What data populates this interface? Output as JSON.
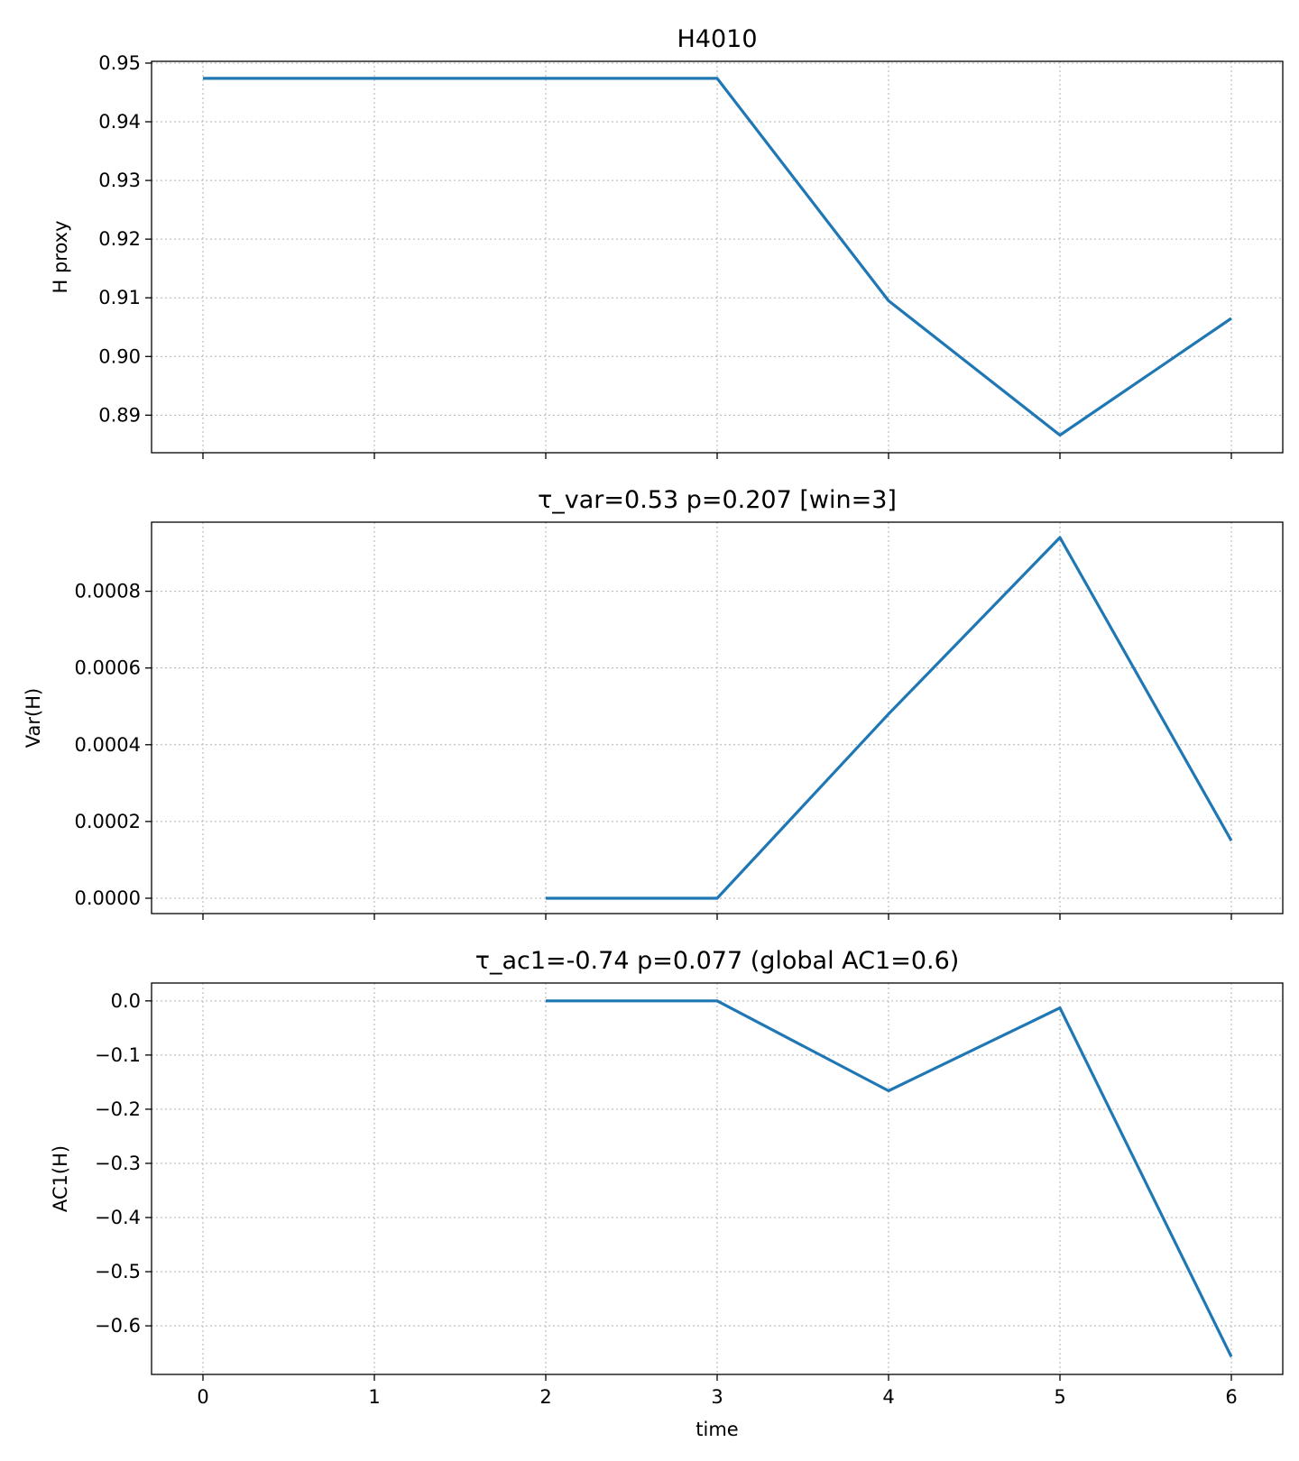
{
  "chart_data": [
    {
      "type": "line",
      "title": "H4010",
      "xlabel": "",
      "ylabel": "H proxy",
      "x": [
        0,
        1,
        2,
        3,
        4,
        5,
        6
      ],
      "xlim": [
        -0.3,
        6.3
      ],
      "ylim": [
        0.8836,
        0.9503
      ],
      "y_ticks": [
        0.89,
        0.9,
        0.91,
        0.92,
        0.93,
        0.94,
        0.95
      ],
      "y_tick_labels": [
        "0.89",
        "0.90",
        "0.91",
        "0.92",
        "0.93",
        "0.94",
        "0.95"
      ],
      "series": [
        {
          "values": [
            0.9474,
            0.9474,
            0.9474,
            0.9474,
            0.9095,
            0.8866,
            0.9065
          ]
        }
      ],
      "grid": true,
      "show_x_tick_labels": false
    },
    {
      "type": "line",
      "title": "τ_var=0.53  p=0.207   [win=3]",
      "xlabel": "",
      "ylabel": "Var(H)",
      "x": [
        0,
        1,
        2,
        3,
        4,
        5,
        6
      ],
      "xlim": [
        -0.3,
        6.3
      ],
      "ylim": [
        -4e-05,
        0.00098
      ],
      "y_ticks": [
        0,
        0.0002,
        0.0004,
        0.0006,
        0.0008
      ],
      "y_tick_labels": [
        "0.0000",
        "0.0002",
        "0.0004",
        "0.0006",
        "0.0008"
      ],
      "series": [
        {
          "values": [
            null,
            null,
            0.0,
            0.0,
            0.00048,
            0.00094,
            0.00015
          ]
        }
      ],
      "grid": true,
      "show_x_tick_labels": false
    },
    {
      "type": "line",
      "title": "τ_ac1=-0.74  p=0.077   (global AC1=0.6)",
      "xlabel": "time",
      "ylabel": "AC1(H)",
      "x": [
        0,
        1,
        2,
        3,
        4,
        5,
        6
      ],
      "x_tick_labels": [
        "0",
        "1",
        "2",
        "3",
        "4",
        "5",
        "6"
      ],
      "xlim": [
        -0.3,
        6.3
      ],
      "ylim": [
        -0.6897,
        0.033
      ],
      "y_ticks": [
        0,
        -0.1,
        -0.2,
        -0.3,
        -0.4,
        -0.5,
        -0.6
      ],
      "y_tick_labels": [
        "0.0",
        "−0.1",
        "−0.2",
        "−0.3",
        "−0.4",
        "−0.5",
        "−0.6"
      ],
      "series": [
        {
          "values": [
            null,
            null,
            0.0,
            0.0,
            -0.166,
            -0.013,
            -0.657
          ]
        }
      ],
      "grid": true,
      "show_x_tick_labels": true
    }
  ],
  "colors": {
    "line": "#1f77b4",
    "grid": "#b0b0b0",
    "axes": "#000000"
  }
}
